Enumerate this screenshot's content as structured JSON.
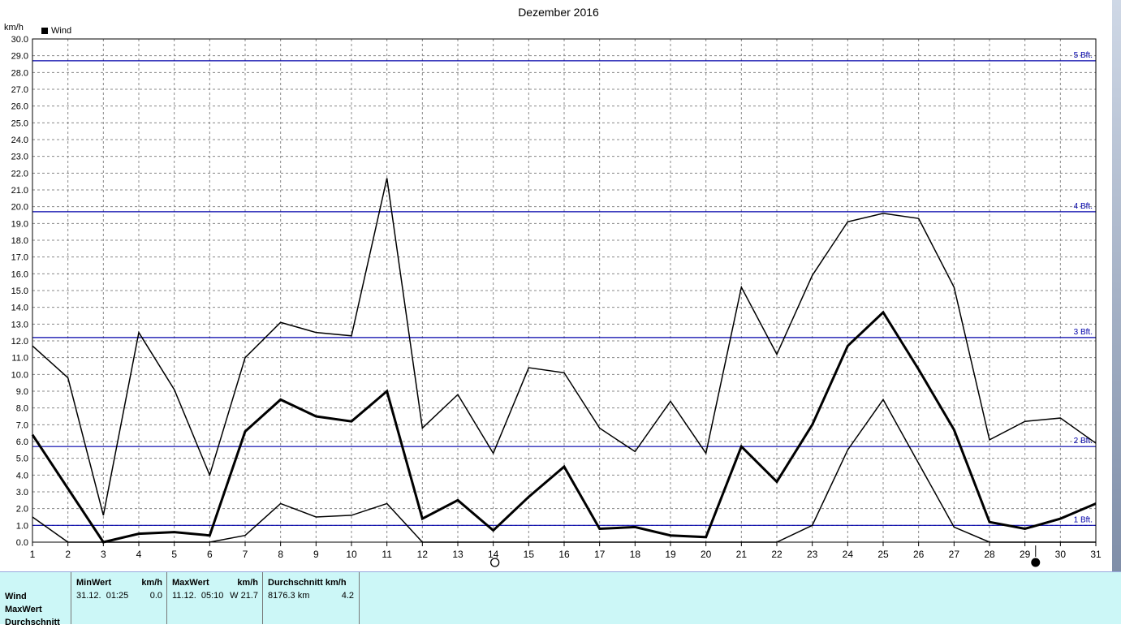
{
  "chart_data": {
    "type": "line",
    "title": "Dezember 2016",
    "ylabel": "km/h",
    "legend": {
      "label": "Wind",
      "position": "top-left"
    },
    "x": [
      1,
      2,
      3,
      4,
      5,
      6,
      7,
      8,
      9,
      10,
      11,
      12,
      13,
      14,
      15,
      16,
      17,
      18,
      19,
      20,
      21,
      22,
      23,
      24,
      25,
      26,
      27,
      28,
      29,
      30,
      31
    ],
    "xlim": [
      1,
      31
    ],
    "ylim": [
      0,
      30
    ],
    "ytick_step": 1,
    "grid": true,
    "series": [
      {
        "role": "max",
        "values": [
          11.7,
          9.8,
          1.6,
          12.5,
          9.1,
          4.0,
          11.0,
          13.1,
          12.5,
          12.3,
          21.7,
          6.8,
          8.8,
          5.3,
          10.4,
          10.1,
          6.8,
          5.4,
          8.4,
          5.3,
          15.2,
          11.2,
          15.9,
          19.1,
          19.6,
          19.3,
          15.2,
          6.1,
          7.2,
          7.4,
          5.9
        ]
      },
      {
        "role": "average",
        "values": [
          6.4,
          3.2,
          0.0,
          0.5,
          0.6,
          0.4,
          6.6,
          8.5,
          7.5,
          7.2,
          9.0,
          1.4,
          2.5,
          0.7,
          2.7,
          4.5,
          0.8,
          0.9,
          0.4,
          0.3,
          5.7,
          3.6,
          7.0,
          11.7,
          13.7,
          10.3,
          6.7,
          1.2,
          0.8,
          1.4,
          2.3
        ]
      },
      {
        "role": "min",
        "values": [
          1.5,
          0.0,
          0.0,
          0.0,
          0.0,
          0.0,
          0.4,
          2.3,
          1.5,
          1.6,
          2.3,
          0.0,
          0.0,
          0.0,
          0.0,
          0.0,
          0.0,
          0.0,
          0.0,
          0.0,
          0.0,
          0.0,
          1.0,
          5.5,
          8.5,
          4.7,
          0.9,
          0.0,
          0.0,
          0.0,
          0.0
        ]
      }
    ],
    "reference_lines": [
      {
        "label": "1 Bft.",
        "value": 1.0
      },
      {
        "label": "2 Bft.",
        "value": 5.7
      },
      {
        "label": "3 Bft.",
        "value": 12.2
      },
      {
        "label": "4 Bft.",
        "value": 19.7
      },
      {
        "label": "5 Bft.",
        "value": 28.7
      }
    ],
    "moon_phases": [
      {
        "day": 14,
        "phase": "full-moon"
      },
      {
        "day": 29.3,
        "phase": "new-moon"
      }
    ],
    "colors": {
      "series": "#000000",
      "reference": "#0000aa",
      "grid": "#888888"
    }
  },
  "stats": {
    "row_labels": [
      "Wind",
      "MaxWert",
      "Durchschnitt"
    ],
    "min": {
      "header": "MinWert",
      "unit": "km/h",
      "date": "31.12.  01:25",
      "value": "0.0"
    },
    "max": {
      "header": "MaxWert",
      "unit": "km/h",
      "date": "11.12.  05:10",
      "value": "W 21.7"
    },
    "avg": {
      "header": "Durchschnitt km/h",
      "distance": "8176.3 km",
      "value": "4.2"
    }
  }
}
